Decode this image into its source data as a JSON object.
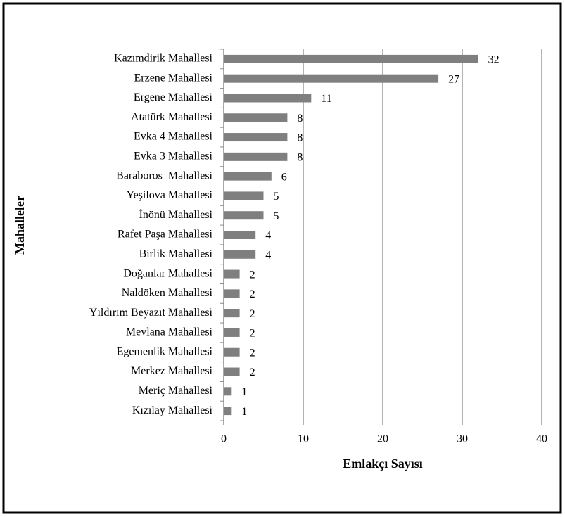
{
  "chart_data": {
    "type": "barh",
    "categories": [
      "Kazımdirik Mahallesi",
      "Erzene Mahallesi",
      "Ergene Mahallesi",
      "Atatürk Mahallesi",
      "Evka 4 Mahallesi",
      "Evka 3 Mahallesi",
      "Baraboros  Mahallesi",
      "Yeşilova Mahallesi",
      "İnönü Mahallesi",
      "Rafet Paşa Mahallesi",
      "Birlik Mahallesi",
      "Doğanlar Mahallesi",
      "Naldöken Mahallesi",
      "Yıldırım Beyazıt Mahallesi",
      "Mevlana Mahallesi",
      "Egemenlik Mahallesi",
      "Merkez Mahallesi",
      "Meriç Mahallesi",
      "Kızılay Mahallesi"
    ],
    "values": [
      32,
      27,
      11,
      8,
      8,
      8,
      6,
      5,
      5,
      4,
      4,
      2,
      2,
      2,
      2,
      2,
      2,
      1,
      1
    ],
    "color": "#7f7f7f",
    "xlim": [
      0,
      40
    ],
    "xticks": [
      0,
      10,
      20,
      30,
      40
    ],
    "grid": true,
    "x_label": "Emlakçı Sayısı",
    "y_label": "Mahalleler"
  }
}
